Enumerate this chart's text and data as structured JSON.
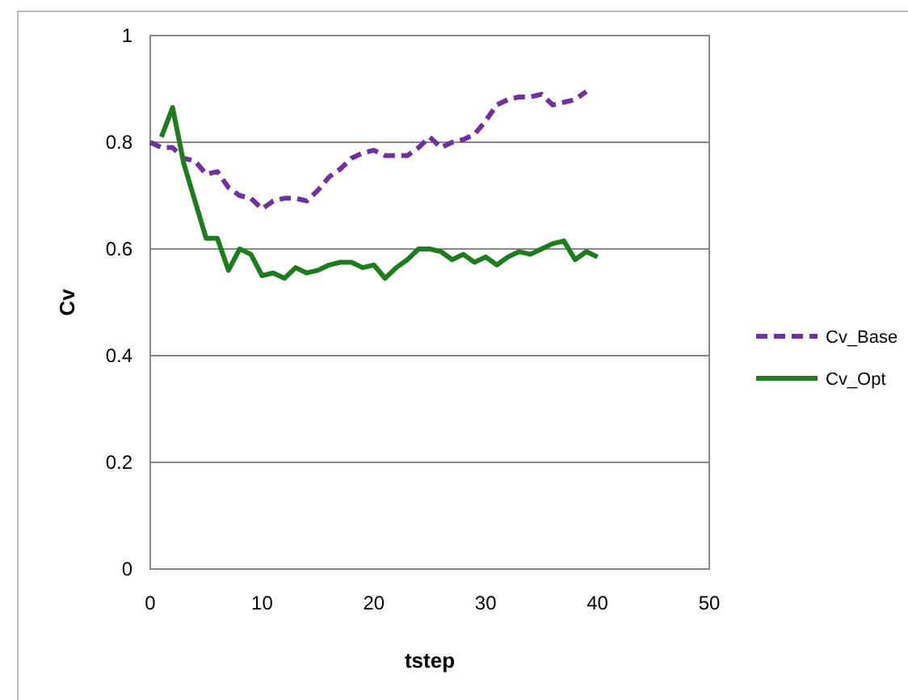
{
  "chart_data": {
    "type": "line",
    "xlabel": "tstep",
    "ylabel": "Cv",
    "xlim": [
      0,
      50
    ],
    "xticks": [
      0,
      10,
      20,
      30,
      40,
      50
    ],
    "ylim": [
      0,
      1
    ],
    "yticks": [
      0,
      0.2,
      0.4,
      0.6,
      0.8,
      1
    ],
    "grid": "y",
    "legend": "right",
    "marker": "none",
    "series": [
      {
        "name": "Cv_Base",
        "color": "#7030a0",
        "line_style": "dashed",
        "x": [
          0,
          1,
          2,
          3,
          4,
          5,
          6,
          7,
          8,
          9,
          10,
          11,
          12,
          13,
          14,
          15,
          16,
          17,
          18,
          19,
          20,
          21,
          22,
          23,
          24,
          25,
          26,
          27,
          28,
          29,
          30,
          31,
          32,
          33,
          34,
          35,
          36,
          37,
          38,
          39
        ],
        "values": [
          0.8,
          0.79,
          0.79,
          0.77,
          0.765,
          0.74,
          0.745,
          0.715,
          0.7,
          0.695,
          0.675,
          0.69,
          0.695,
          0.695,
          0.69,
          0.71,
          0.735,
          0.75,
          0.77,
          0.78,
          0.785,
          0.775,
          0.775,
          0.775,
          0.79,
          0.81,
          0.79,
          0.8,
          0.805,
          0.815,
          0.84,
          0.87,
          0.88,
          0.885,
          0.885,
          0.89,
          0.87,
          0.875,
          0.88,
          0.895
        ]
      },
      {
        "name": "Cv_Opt",
        "color": "#1e7b1e",
        "line_style": "solid",
        "x": [
          1,
          2,
          3,
          4,
          5,
          6,
          7,
          8,
          9,
          10,
          11,
          12,
          13,
          14,
          15,
          16,
          17,
          18,
          19,
          20,
          21,
          22,
          23,
          24,
          25,
          26,
          27,
          28,
          29,
          30,
          31,
          32,
          33,
          34,
          35,
          36,
          37,
          38,
          39,
          40
        ],
        "values": [
          0.81,
          0.865,
          0.76,
          0.69,
          0.62,
          0.62,
          0.56,
          0.6,
          0.59,
          0.55,
          0.555,
          0.545,
          0.565,
          0.555,
          0.56,
          0.57,
          0.575,
          0.575,
          0.565,
          0.57,
          0.545,
          0.565,
          0.58,
          0.6,
          0.6,
          0.595,
          0.58,
          0.59,
          0.575,
          0.585,
          0.57,
          0.585,
          0.595,
          0.59,
          0.6,
          0.61,
          0.615,
          0.58,
          0.595,
          0.585
        ]
      }
    ]
  }
}
